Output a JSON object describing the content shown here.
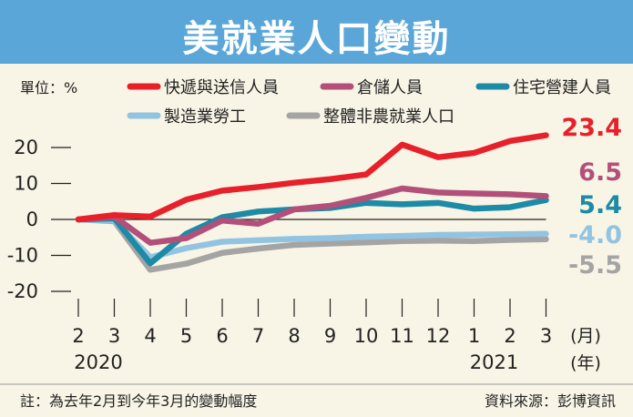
{
  "title": "美就業人口變動",
  "unit_label": "單位：%",
  "month_label": "(月)",
  "year_label": "(年)",
  "note": "註：為去年2月到今年3月的變動幅度",
  "source": "資料來源：彭博資訊",
  "year_labels": [
    {
      "text": "2020",
      "at": "2"
    },
    {
      "text": "2021",
      "at": "1"
    }
  ],
  "chart_data": {
    "type": "line",
    "title": "美就業人口變動",
    "xlabel": "(月) (年)",
    "ylabel": "單位：%",
    "x": [
      "2",
      "3",
      "4",
      "5",
      "6",
      "7",
      "8",
      "9",
      "10",
      "11",
      "12",
      "1",
      "2",
      "3"
    ],
    "ylim": [
      -20,
      23.4
    ],
    "yticks": [
      20,
      10,
      0,
      -10,
      -20
    ],
    "grid": false,
    "legend": "top",
    "series": [
      {
        "name": "快遞與送信人員",
        "color": "#e8202a",
        "end_label": "23.4",
        "values": [
          0,
          1.2,
          0.8,
          5.5,
          8.0,
          9.0,
          10.2,
          11.2,
          12.5,
          20.8,
          17.3,
          18.5,
          21.8,
          23.4
        ]
      },
      {
        "name": "倉儲人員",
        "color": "#b2507a",
        "end_label": "6.5",
        "values": [
          0,
          0.8,
          -6.5,
          -5.2,
          -0.3,
          -1.2,
          2.8,
          3.8,
          6.0,
          8.6,
          7.5,
          7.2,
          7.0,
          6.5
        ]
      },
      {
        "name": "住宅營建人員",
        "color": "#1d8aa6",
        "end_label": "5.4",
        "values": [
          0,
          0.3,
          -12.2,
          -4.0,
          0.6,
          2.2,
          2.8,
          3.2,
          4.6,
          4.2,
          4.6,
          3.0,
          3.4,
          5.4
        ]
      },
      {
        "name": "製造業勞工",
        "color": "#92c4e2",
        "end_label": "-4.0",
        "values": [
          0,
          -0.3,
          -10.5,
          -8.0,
          -6.2,
          -5.8,
          -5.4,
          -5.2,
          -4.8,
          -4.6,
          -4.3,
          -4.2,
          -4.1,
          -4.0
        ]
      },
      {
        "name": "整體非農就業人口",
        "color": "#a4a4a4",
        "end_label": "-5.5",
        "values": [
          0,
          -0.5,
          -14.0,
          -12.3,
          -9.3,
          -8.1,
          -7.1,
          -6.7,
          -6.4,
          -6.0,
          -5.9,
          -6.0,
          -5.7,
          -5.5
        ]
      }
    ]
  }
}
